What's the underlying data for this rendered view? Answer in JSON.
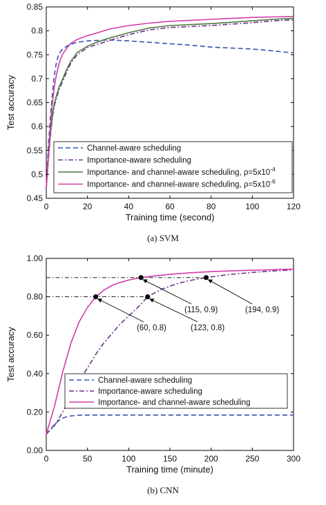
{
  "chart_data": [
    {
      "type": "line",
      "caption": "(a)  SVM",
      "xlabel": "Training time (second)",
      "ylabel": "Test accuracy",
      "xlim": [
        0,
        120
      ],
      "ylim": [
        0.45,
        0.85
      ],
      "xticks": [
        0,
        20,
        40,
        60,
        80,
        100,
        120
      ],
      "yticks": [
        "0.45",
        "0.5",
        "0.55",
        "0.6",
        "0.65",
        "0.7",
        "0.75",
        "0.8",
        "0.85"
      ],
      "grid": false,
      "legend_position": "bottom-right",
      "series": [
        {
          "name": "Channel-aware scheduling",
          "color": "#3a4fb0",
          "style": "dashed",
          "x": [
            0,
            1,
            2,
            3,
            4,
            5,
            6,
            7,
            8,
            10,
            12,
            15,
            20,
            30,
            40,
            50,
            60,
            70,
            80,
            90,
            100,
            110,
            120
          ],
          "y": [
            0.47,
            0.56,
            0.62,
            0.67,
            0.71,
            0.735,
            0.75,
            0.757,
            0.762,
            0.768,
            0.772,
            0.776,
            0.779,
            0.781,
            0.779,
            0.776,
            0.773,
            0.77,
            0.766,
            0.764,
            0.762,
            0.758,
            0.754
          ]
        },
        {
          "name": "Importance-aware scheduling",
          "color": "#6a2f8a",
          "style": "dashdot",
          "x": [
            0,
            1,
            2,
            3,
            4,
            6,
            8,
            10,
            12,
            15,
            20,
            25,
            30,
            40,
            50,
            60,
            70,
            80,
            90,
            100,
            110,
            120
          ],
          "y": [
            0.47,
            0.53,
            0.58,
            0.62,
            0.645,
            0.675,
            0.695,
            0.715,
            0.733,
            0.75,
            0.765,
            0.772,
            0.779,
            0.792,
            0.802,
            0.807,
            0.809,
            0.811,
            0.814,
            0.817,
            0.821,
            0.823
          ]
        },
        {
          "name": "Importance- and channel-aware scheduling, ρ=5x10",
          "name_exponent": "-4",
          "color": "#4a7a3a",
          "style": "solid",
          "x": [
            0,
            1,
            2,
            3,
            4,
            6,
            8,
            10,
            12,
            15,
            20,
            25,
            30,
            40,
            50,
            60,
            70,
            80,
            90,
            100,
            110,
            120
          ],
          "y": [
            0.47,
            0.535,
            0.585,
            0.625,
            0.65,
            0.68,
            0.7,
            0.72,
            0.737,
            0.755,
            0.768,
            0.777,
            0.784,
            0.796,
            0.806,
            0.811,
            0.813,
            0.815,
            0.818,
            0.821,
            0.824,
            0.826
          ]
        },
        {
          "name": "Importance- and channel-aware scheduling, ρ=5x10",
          "name_exponent": "-6",
          "color": "#d23aa8",
          "style": "solid",
          "x": [
            0,
            1,
            2,
            3,
            4,
            5,
            6,
            7,
            8,
            10,
            12,
            15,
            20,
            25,
            30,
            40,
            50,
            60,
            70,
            80,
            90,
            100,
            110,
            120
          ],
          "y": [
            0.47,
            0.54,
            0.6,
            0.65,
            0.685,
            0.71,
            0.728,
            0.742,
            0.752,
            0.764,
            0.774,
            0.782,
            0.79,
            0.796,
            0.803,
            0.811,
            0.816,
            0.82,
            0.822,
            0.824,
            0.826,
            0.828,
            0.829,
            0.83
          ]
        }
      ]
    },
    {
      "type": "line",
      "caption": "(b)  CNN",
      "xlabel": "Training time (minute)",
      "ylabel": "Test accuracy",
      "xlim": [
        0,
        300
      ],
      "ylim": [
        0,
        1
      ],
      "xticks": [
        0,
        50,
        100,
        150,
        200,
        250,
        300
      ],
      "yticks": [
        "0.00",
        "0.20",
        "0.40",
        "0.60",
        "0.80",
        "1.00"
      ],
      "grid": false,
      "legend_position": "bottom-right",
      "series": [
        {
          "name": "Channel-aware scheduling",
          "color": "#3a4fb0",
          "style": "dashed",
          "x": [
            0,
            5,
            10,
            15,
            20,
            25,
            30,
            40,
            50,
            75,
            100,
            150,
            200,
            250,
            300
          ],
          "y": [
            0.085,
            0.11,
            0.135,
            0.155,
            0.168,
            0.176,
            0.18,
            0.183,
            0.184,
            0.184,
            0.184,
            0.184,
            0.184,
            0.184,
            0.184
          ]
        },
        {
          "name": "Importance-aware scheduling",
          "color": "#6a2f8a",
          "style": "dashdot",
          "x": [
            0,
            10,
            20,
            30,
            40,
            50,
            60,
            70,
            80,
            90,
            100,
            110,
            123,
            140,
            160,
            180,
            194,
            220,
            250,
            280,
            300
          ],
          "y": [
            0.085,
            0.13,
            0.2,
            0.28,
            0.36,
            0.43,
            0.5,
            0.56,
            0.61,
            0.66,
            0.7,
            0.74,
            0.8,
            0.84,
            0.87,
            0.89,
            0.9,
            0.915,
            0.927,
            0.936,
            0.94
          ]
        },
        {
          "name": "Importance- and channel-aware scheduling",
          "color": "#d23aa8",
          "style": "solid",
          "x": [
            0,
            10,
            20,
            30,
            40,
            50,
            60,
            70,
            80,
            90,
            100,
            115,
            130,
            150,
            175,
            200,
            225,
            250,
            275,
            300
          ],
          "y": [
            0.085,
            0.23,
            0.41,
            0.56,
            0.67,
            0.745,
            0.8,
            0.835,
            0.86,
            0.875,
            0.887,
            0.9,
            0.908,
            0.917,
            0.925,
            0.931,
            0.935,
            0.938,
            0.941,
            0.944
          ]
        }
      ],
      "annotations": [
        {
          "label": "(60, 0.8)",
          "x": 60,
          "y": 0.8
        },
        {
          "label": "(123, 0.8)",
          "x": 123,
          "y": 0.8
        },
        {
          "label": "(115, 0.9)",
          "x": 115,
          "y": 0.9
        },
        {
          "label": "(194, 0.9)",
          "x": 194,
          "y": 0.9
        }
      ]
    }
  ]
}
